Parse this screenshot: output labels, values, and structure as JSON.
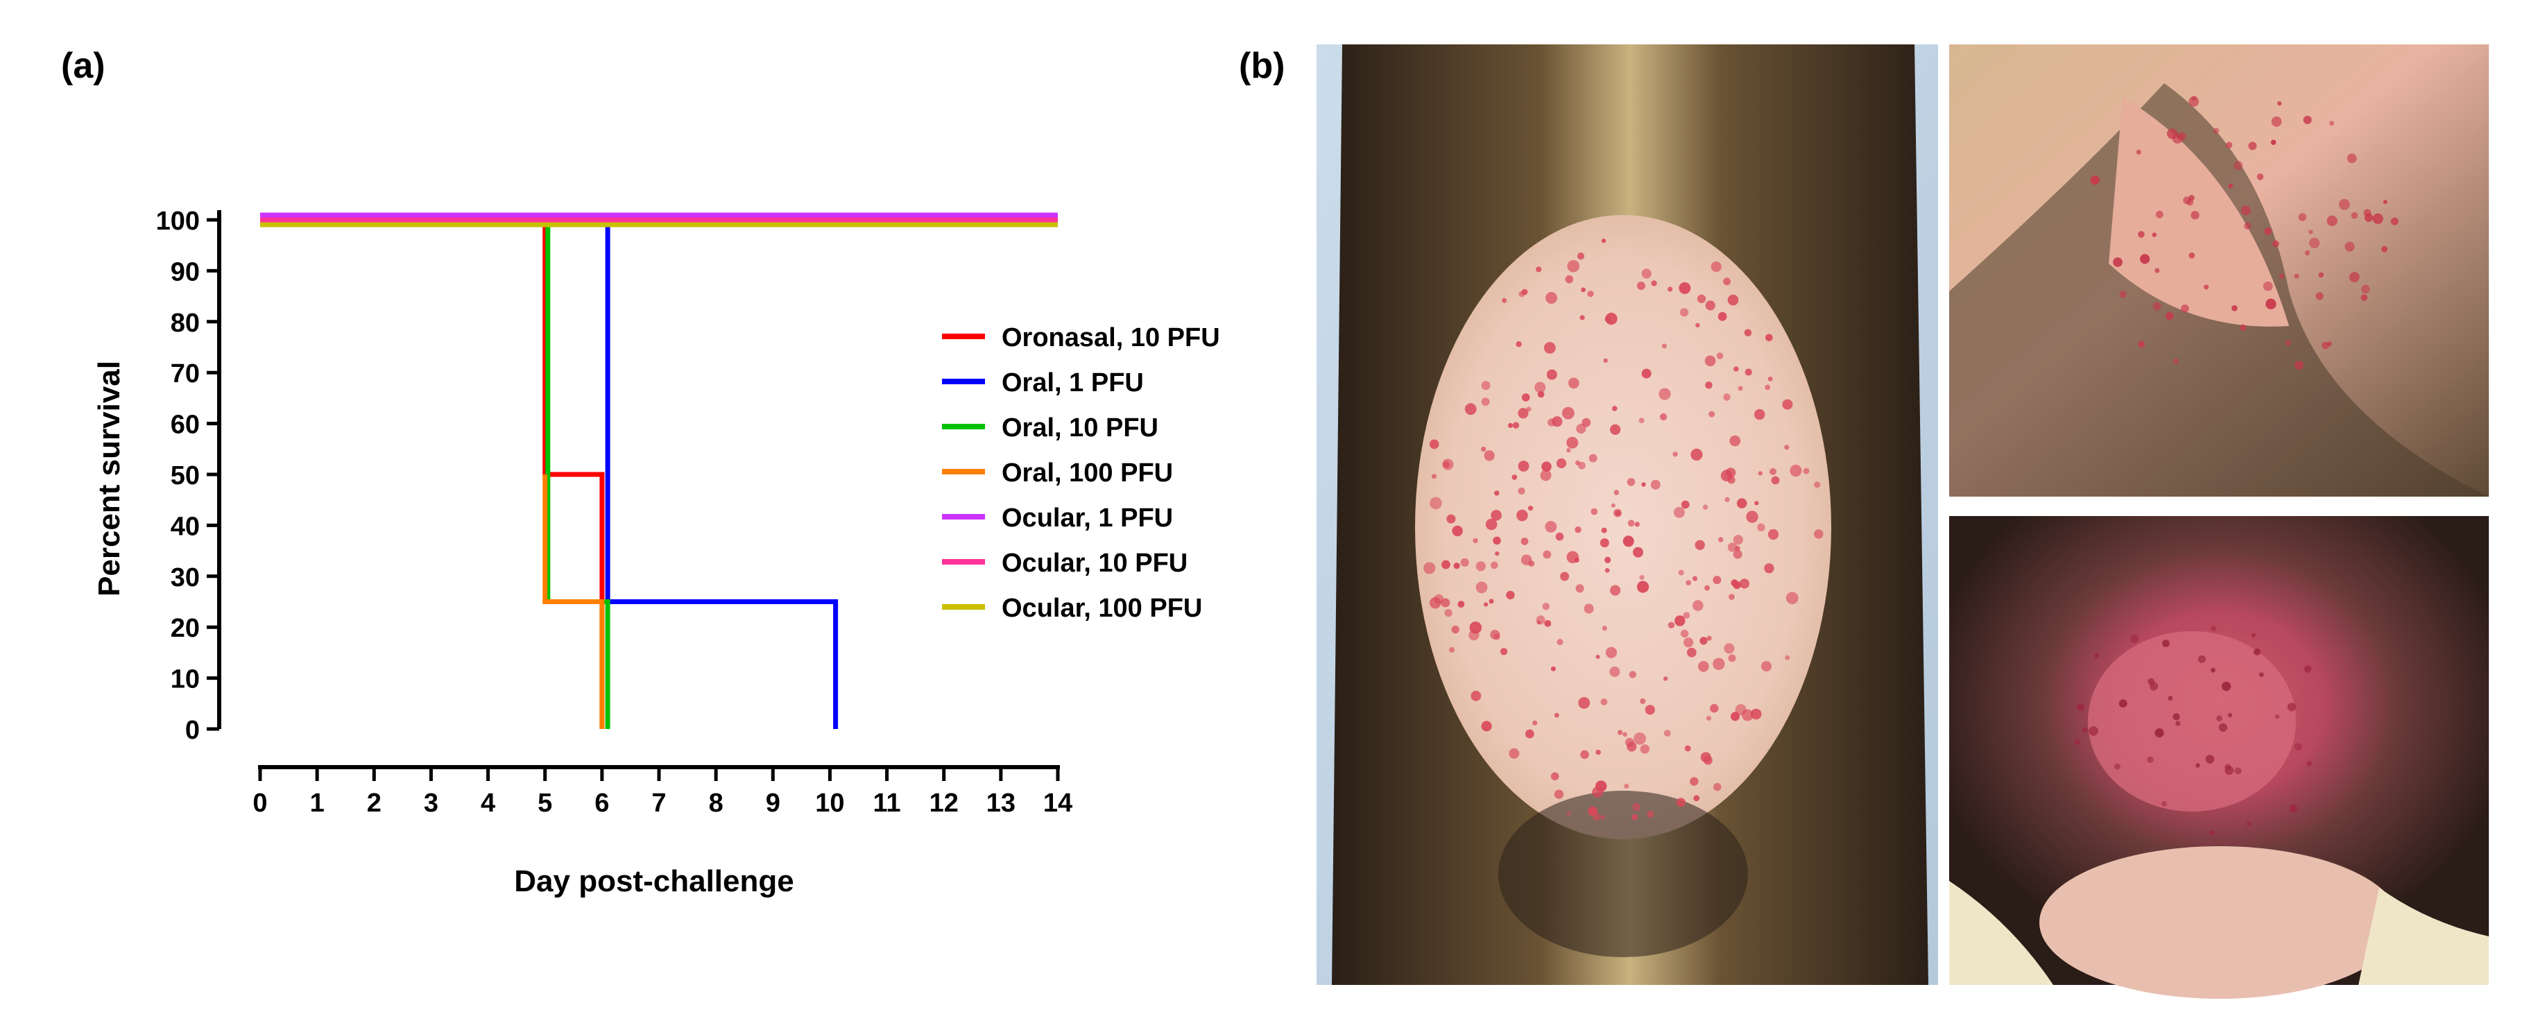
{
  "panels": {
    "a_label": "(a)",
    "b_label": "(b)"
  },
  "photos": {
    "abdomen": "ferret abdomen with disseminated red rash",
    "ear": "ferret ear with red lesions",
    "chin": "ferret chin with inflamed lesion"
  },
  "chart_data": {
    "type": "line",
    "step": true,
    "title": "",
    "xlabel": "Day post-challenge",
    "ylabel": "Percent survival",
    "xlim": [
      0,
      14
    ],
    "ylim": [
      0,
      100
    ],
    "xticks": [
      0,
      1,
      2,
      3,
      4,
      5,
      6,
      7,
      8,
      9,
      10,
      11,
      12,
      13,
      14
    ],
    "yticks": [
      0,
      10,
      20,
      30,
      40,
      50,
      60,
      70,
      80,
      90,
      100
    ],
    "legend_position": "right",
    "series": [
      {
        "name": "Oronasal, 10 PFU",
        "color": "#ff0000",
        "x": [
          0,
          5,
          5,
          6,
          6
        ],
        "y": [
          100,
          100,
          50,
          50,
          0
        ]
      },
      {
        "name": "Oral, 1 PFU",
        "color": "#0000ff",
        "x": [
          5,
          6.1,
          6.1,
          10.1,
          10.1
        ],
        "y": [
          100,
          100,
          25,
          25,
          0
        ]
      },
      {
        "name": "Oral, 10 PFU",
        "color": "#00c000",
        "x": [
          0,
          5.05,
          5.05,
          6.1,
          6.1
        ],
        "y": [
          100,
          100,
          25,
          25,
          0
        ]
      },
      {
        "name": "Oral, 100 PFU",
        "color": "#ff8000",
        "x": [
          5,
          5,
          6,
          6
        ],
        "y": [
          50,
          25,
          25,
          0
        ]
      },
      {
        "name": "Ocular, 1 PFU",
        "color": "#cc33ff",
        "x": [
          0,
          14
        ],
        "y": [
          100,
          100
        ]
      },
      {
        "name": "Ocular, 10 PFU",
        "color": "#ff3399",
        "x": [
          0,
          14
        ],
        "y": [
          100,
          100
        ]
      },
      {
        "name": "Ocular, 100 PFU",
        "color": "#c8c000",
        "x": [
          0,
          14
        ],
        "y": [
          100,
          100
        ]
      }
    ]
  }
}
